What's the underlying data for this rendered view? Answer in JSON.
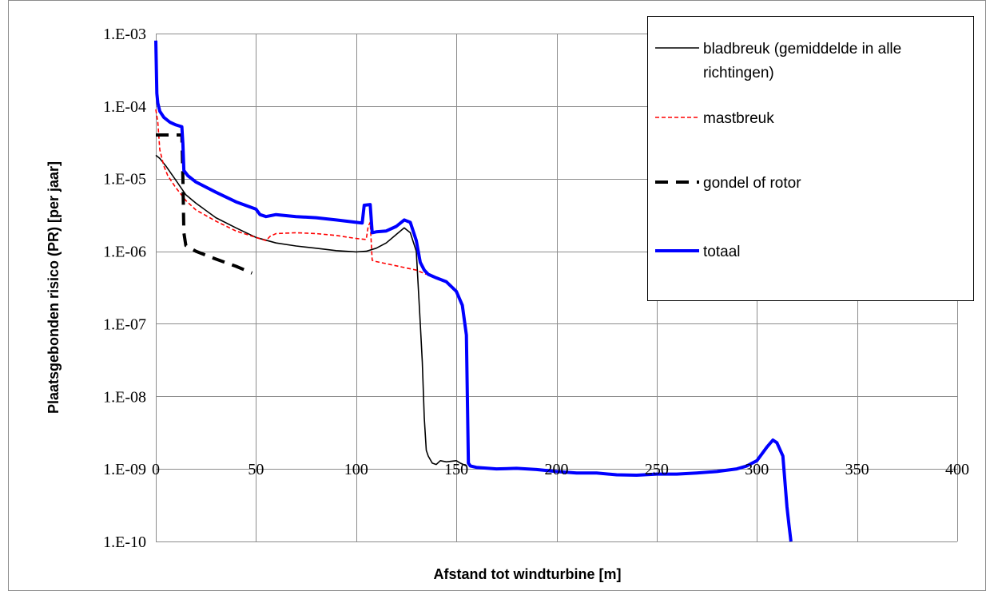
{
  "chart_data": {
    "type": "line",
    "title": "",
    "xlabel": "Afstand tot windturbine [m]",
    "ylabel": "Plaatsgebonden risico (PR) [per jaar]",
    "xlim": [
      0,
      400
    ],
    "ylim": [
      1e-10,
      0.001
    ],
    "y_scale": "log",
    "grid": true,
    "legend_position": "top-right",
    "x_ticks": [
      "0",
      "50",
      "100",
      "150",
      "200",
      "250",
      "300",
      "350",
      "400"
    ],
    "y_ticks": [
      "1.E-03",
      "1.E-04",
      "1.E-05",
      "1.E-06",
      "1.E-07",
      "1.E-08",
      "1.E-09",
      "1.E-10"
    ],
    "series": [
      {
        "name": "bladbreuk (gemiddelde in alle richtingen)",
        "name_lines": [
          "bladbreuk (gemiddelde in alle",
          "richtingen)"
        ],
        "color": "#000000",
        "style": "solid-thin",
        "x": [
          0,
          2,
          5,
          10,
          15,
          20,
          30,
          40,
          50,
          60,
          70,
          80,
          90,
          100,
          105,
          110,
          115,
          120,
          124,
          127,
          130,
          132,
          133,
          134,
          135,
          136,
          138,
          140,
          142,
          145,
          150,
          152,
          155
        ],
        "y": [
          2.1e-05,
          1.9e-05,
          1.5e-05,
          9.5e-06,
          6e-06,
          4.6e-06,
          2.9e-06,
          2.1e-06,
          1.55e-06,
          1.3e-06,
          1.18e-06,
          1.1e-06,
          1.02e-06,
          9.8e-07,
          1e-06,
          1.1e-06,
          1.3e-06,
          1.7e-06,
          2.1e-06,
          1.8e-06,
          1e-06,
          1e-07,
          3e-08,
          5e-09,
          1.8e-09,
          1.5e-09,
          1.2e-09,
          1.15e-09,
          1.3e-09,
          1.25e-09,
          1.3e-09,
          1.2e-09,
          1.1e-09
        ]
      },
      {
        "name": "mastbreuk",
        "name_lines": [
          "mastbreuk"
        ],
        "color": "#ff0000",
        "style": "dashed-fine",
        "x": [
          0,
          1,
          2,
          4,
          6,
          10,
          15,
          20,
          30,
          40,
          50,
          55,
          57,
          60,
          70,
          80,
          90,
          100,
          105,
          106,
          107,
          108,
          110,
          120,
          130,
          135
        ],
        "y": [
          9e-05,
          6e-05,
          2.5e-05,
          1.5e-05,
          1.1e-05,
          7.5e-06,
          5e-06,
          3.7e-06,
          2.6e-06,
          1.9e-06,
          1.55e-06,
          1.4e-06,
          1.6e-06,
          1.75e-06,
          1.8e-06,
          1.75e-06,
          1.65e-06,
          1.5e-06,
          1.45e-06,
          2.2e-06,
          2.5e-06,
          7.5e-07,
          7.2e-07,
          6.3e-07,
          5.5e-07,
          4.8e-07
        ]
      },
      {
        "name": "gondel of rotor",
        "name_lines": [
          "gondel of rotor"
        ],
        "color": "#000000",
        "style": "dashed-thick",
        "x": [
          0,
          13,
          13.5,
          14,
          15,
          20,
          30,
          40,
          48
        ],
        "y": [
          4e-05,
          4e-05,
          1e-05,
          1.8e-06,
          1.2e-06,
          1e-06,
          7.8e-07,
          6.2e-07,
          5e-07
        ]
      },
      {
        "name": "totaal",
        "name_lines": [
          "totaal"
        ],
        "color": "#0000ff",
        "style": "solid-thick",
        "x": [
          0,
          0.5,
          1,
          2,
          4,
          7,
          10,
          13,
          13.5,
          14,
          16,
          20,
          30,
          40,
          50,
          52,
          55,
          60,
          70,
          80,
          90,
          100,
          103,
          104,
          107,
          108,
          110,
          115,
          120,
          124,
          127,
          130,
          132,
          134,
          136,
          140,
          145,
          150,
          153,
          155,
          156,
          157,
          160,
          170,
          180,
          190,
          200,
          210,
          220,
          230,
          240,
          250,
          260,
          270,
          280,
          290,
          295,
          300,
          305,
          308,
          310,
          313,
          315,
          316,
          317
        ],
        "y": [
          0.0008,
          0.00015,
          0.00011,
          8.5e-05,
          7e-05,
          6e-05,
          5.5e-05,
          5.2e-05,
          3e-05,
          1.3e-05,
          1.1e-05,
          9e-06,
          6.5e-06,
          4.8e-06,
          3.8e-06,
          3.2e-06,
          3e-06,
          3.2e-06,
          3e-06,
          2.9e-06,
          2.7e-06,
          2.5e-06,
          2.45e-06,
          4.3e-06,
          4.4e-06,
          1.8e-06,
          1.85e-06,
          1.9e-06,
          2.2e-06,
          2.7e-06,
          2.5e-06,
          1.4e-06,
          7e-07,
          5.5e-07,
          4.8e-07,
          4.3e-07,
          3.8e-07,
          2.8e-07,
          1.8e-07,
          7e-08,
          1.2e-09,
          1.1e-09,
          1.05e-09,
          1e-09,
          1.02e-09,
          9.8e-10,
          9.2e-10,
          8.8e-10,
          8.8e-10,
          8.3e-10,
          8.2e-10,
          8.5e-10,
          8.5e-10,
          8.8e-10,
          9.2e-10,
          1e-09,
          1.1e-09,
          1.3e-09,
          2e-09,
          2.5e-09,
          2.3e-09,
          1.5e-09,
          3e-10,
          1.7e-10,
          1e-10
        ]
      }
    ]
  }
}
